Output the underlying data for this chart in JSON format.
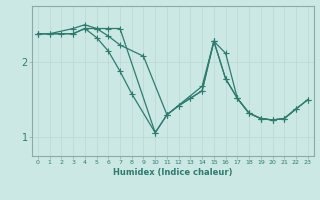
{
  "xlabel": "Humidex (Indice chaleur)",
  "bg_color": "#cce8e4",
  "line_color": "#2d7c6e",
  "grid_color": "#b8d8d4",
  "axis_color": "#8aabaa",
  "text_color": "#2d7c6e",
  "xlim": [
    -0.5,
    23.5
  ],
  "ylim": [
    0.75,
    2.75
  ],
  "yticks": [
    1,
    2
  ],
  "xticks": [
    0,
    1,
    2,
    3,
    4,
    5,
    6,
    7,
    8,
    9,
    10,
    11,
    12,
    13,
    14,
    15,
    16,
    17,
    18,
    19,
    20,
    21,
    22,
    23
  ],
  "line1_x": [
    0,
    1,
    3,
    4,
    5,
    6,
    7,
    9,
    11,
    14,
    15,
    16,
    17,
    18,
    19,
    20,
    21,
    23
  ],
  "line1_y": [
    2.38,
    2.38,
    2.45,
    2.5,
    2.45,
    2.35,
    2.23,
    2.08,
    1.3,
    1.68,
    2.28,
    1.78,
    1.52,
    1.32,
    1.25,
    1.23,
    1.25,
    1.5
  ],
  "line2_x": [
    0,
    3,
    4,
    5,
    6,
    7,
    8,
    10,
    11,
    12,
    13,
    14,
    15,
    16,
    17,
    18,
    19,
    20,
    21,
    22
  ],
  "line2_y": [
    2.38,
    2.38,
    2.45,
    2.33,
    2.15,
    1.88,
    1.58,
    1.06,
    1.3,
    1.42,
    1.52,
    1.62,
    2.28,
    2.12,
    1.52,
    1.32,
    1.25,
    1.23,
    1.25,
    1.38
  ],
  "line3_x": [
    0,
    1,
    2,
    3,
    4,
    5,
    6,
    7,
    10,
    11,
    12,
    13,
    14,
    15,
    16,
    17,
    18,
    19,
    20,
    21,
    22,
    23
  ],
  "line3_y": [
    2.38,
    2.38,
    2.38,
    2.38,
    2.45,
    2.45,
    2.45,
    2.45,
    1.06,
    1.3,
    1.42,
    1.52,
    1.62,
    2.28,
    1.78,
    1.52,
    1.32,
    1.25,
    1.23,
    1.25,
    1.38,
    1.5
  ],
  "marker_size": 2.5,
  "line_width": 0.9
}
